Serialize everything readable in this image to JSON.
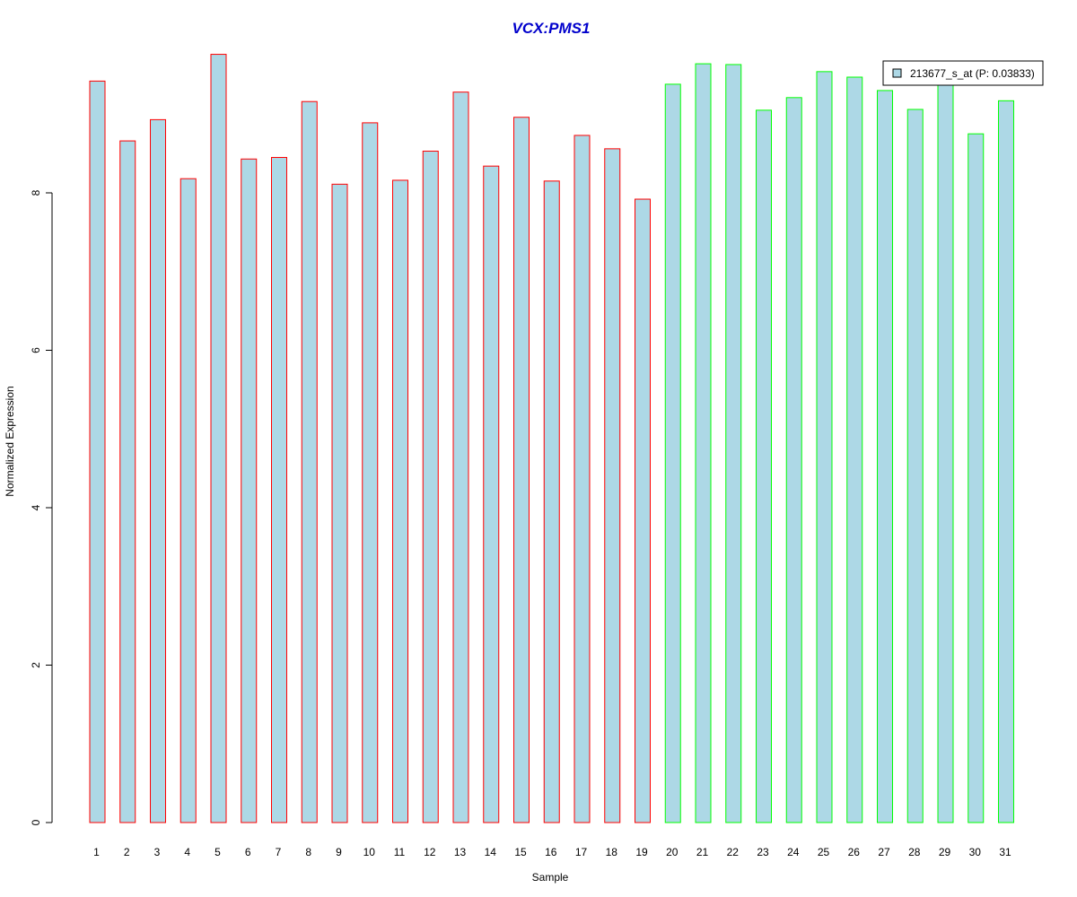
{
  "colors": {
    "title": "#0000cc",
    "bar_fill": "#add8e6",
    "group1_border": "#ff0000",
    "group2_border": "#00ff00",
    "axis": "#000000",
    "background": "#ffffff"
  },
  "chart_data": {
    "type": "bar",
    "title": "VCX:PMS1",
    "xlabel": "Sample",
    "ylabel": "Normalized Expression",
    "ylim": [
      0,
      9.8
    ],
    "yticks": [
      0,
      2,
      4,
      6,
      8
    ],
    "ytick_labels": [
      "0",
      "2",
      "4",
      "6",
      "8"
    ],
    "categories": [
      "1",
      "2",
      "3",
      "4",
      "5",
      "6",
      "7",
      "8",
      "9",
      "10",
      "11",
      "12",
      "13",
      "14",
      "15",
      "16",
      "17",
      "18",
      "19",
      "20",
      "21",
      "22",
      "23",
      "24",
      "25",
      "26",
      "27",
      "28",
      "29",
      "30",
      "31"
    ],
    "groups": [
      1,
      1,
      1,
      1,
      1,
      1,
      1,
      1,
      1,
      1,
      1,
      1,
      1,
      1,
      1,
      1,
      1,
      1,
      1,
      2,
      2,
      2,
      2,
      2,
      2,
      2,
      2,
      2,
      2,
      2,
      2
    ],
    "series": [
      {
        "name": "213677_s_at (P: 0.03833)",
        "values": [
          9.42,
          8.66,
          8.93,
          8.18,
          9.76,
          8.43,
          8.45,
          9.16,
          8.11,
          8.89,
          8.16,
          8.53,
          9.28,
          8.34,
          8.96,
          8.15,
          8.73,
          8.56,
          7.92,
          9.38,
          9.64,
          9.63,
          9.05,
          9.21,
          9.54,
          9.47,
          9.3,
          9.06,
          9.38,
          8.75,
          9.17
        ]
      }
    ],
    "legend": {
      "position": "top-right",
      "entries": [
        "213677_s_at (P: 0.03833)"
      ]
    },
    "grid": false
  }
}
